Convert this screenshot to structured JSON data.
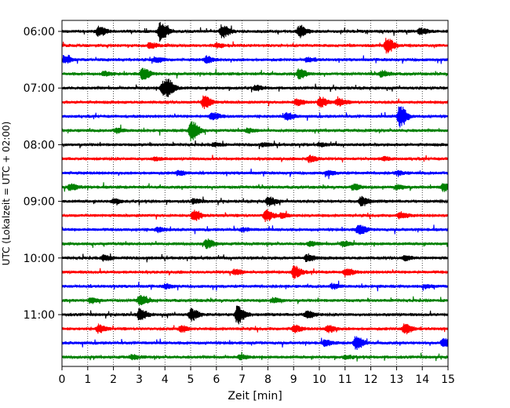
{
  "chart_data": {
    "type": "line",
    "title": "",
    "xlabel": "Zeit  [min]",
    "ylabel": "UTC (Lokalzeit = UTC + 02:00)",
    "xlim": [
      0,
      15
    ],
    "x_ticks": [
      "0",
      "1",
      "2",
      "3",
      "4",
      "5",
      "6",
      "7",
      "8",
      "9",
      "10",
      "11",
      "12",
      "13",
      "14",
      "15"
    ],
    "y_ticks": [
      "06:00",
      "07:00",
      "08:00",
      "09:00",
      "10:00",
      "11:00"
    ],
    "grid": "vertical dotted",
    "series_colors": [
      "#000000",
      "#ff0000",
      "#0000ff",
      "#008000"
    ],
    "trace_starts": [
      "06:00",
      "06:15",
      "06:30",
      "06:45",
      "07:00",
      "07:15",
      "07:30",
      "07:45",
      "08:00",
      "08:15",
      "08:30",
      "08:45",
      "09:00",
      "09:15",
      "09:30",
      "09:45",
      "10:00",
      "10:15",
      "10:30",
      "10:45",
      "11:00",
      "11:15",
      "11:30",
      "11:45"
    ],
    "events": [
      [
        [
          1.4,
          0.45
        ],
        [
          3.8,
          0.9
        ],
        [
          6.2,
          0.6
        ],
        [
          9.2,
          0.55
        ],
        [
          13.9,
          0.25
        ]
      ],
      [
        [
          3.4,
          0.25
        ],
        [
          12.6,
          0.7
        ],
        [
          6.0,
          0.2
        ]
      ],
      [
        [
          0.1,
          0.3
        ],
        [
          3.6,
          0.25
        ],
        [
          5.6,
          0.3
        ],
        [
          9.5,
          0.2
        ]
      ],
      [
        [
          3.1,
          0.55
        ],
        [
          9.2,
          0.45
        ],
        [
          12.4,
          0.25
        ],
        [
          1.6,
          0.2
        ]
      ],
      [
        [
          3.9,
          0.65
        ],
        [
          4.1,
          0.5
        ],
        [
          7.5,
          0.2
        ]
      ],
      [
        [
          5.5,
          0.6
        ],
        [
          10.0,
          0.45
        ],
        [
          10.7,
          0.35
        ],
        [
          9.1,
          0.3
        ]
      ],
      [
        [
          13.1,
          1.0
        ],
        [
          5.8,
          0.35
        ],
        [
          8.7,
          0.3
        ]
      ],
      [
        [
          5.0,
          0.95
        ],
        [
          2.1,
          0.2
        ],
        [
          7.2,
          0.2
        ]
      ],
      [
        [
          7.8,
          0.15
        ],
        [
          10.0,
          0.15
        ],
        [
          5.9,
          0.15
        ]
      ],
      [
        [
          9.6,
          0.3
        ],
        [
          3.6,
          0.15
        ],
        [
          12.5,
          0.15
        ]
      ],
      [
        [
          4.5,
          0.2
        ],
        [
          10.3,
          0.2
        ],
        [
          13.0,
          0.15
        ]
      ],
      [
        [
          0.3,
          0.3
        ],
        [
          14.8,
          0.35
        ],
        [
          11.3,
          0.25
        ],
        [
          13.0,
          0.2
        ]
      ],
      [
        [
          8.0,
          0.4
        ],
        [
          11.6,
          0.4
        ],
        [
          5.1,
          0.2
        ],
        [
          2.0,
          0.2
        ]
      ],
      [
        [
          5.1,
          0.5
        ],
        [
          7.9,
          0.55
        ],
        [
          13.1,
          0.3
        ],
        [
          8.5,
          0.2
        ]
      ],
      [
        [
          11.5,
          0.45
        ],
        [
          3.7,
          0.2
        ],
        [
          7.0,
          0.15
        ]
      ],
      [
        [
          5.6,
          0.4
        ],
        [
          10.9,
          0.25
        ],
        [
          9.6,
          0.2
        ]
      ],
      [
        [
          1.6,
          0.25
        ],
        [
          9.5,
          0.3
        ],
        [
          13.3,
          0.2
        ]
      ],
      [
        [
          9.0,
          0.55
        ],
        [
          11.0,
          0.35
        ],
        [
          6.7,
          0.25
        ]
      ],
      [
        [
          10.5,
          0.2
        ],
        [
          4.0,
          0.2
        ],
        [
          14.1,
          0.15
        ]
      ],
      [
        [
          3.0,
          0.45
        ],
        [
          1.1,
          0.25
        ],
        [
          8.2,
          0.2
        ]
      ],
      [
        [
          3.0,
          0.5
        ],
        [
          5.0,
          0.55
        ],
        [
          6.8,
          0.85
        ],
        [
          9.5,
          0.35
        ]
      ],
      [
        [
          1.4,
          0.35
        ],
        [
          4.6,
          0.3
        ],
        [
          9.0,
          0.3
        ],
        [
          10.3,
          0.35
        ],
        [
          13.3,
          0.5
        ]
      ],
      [
        [
          11.4,
          0.6
        ],
        [
          14.8,
          0.45
        ],
        [
          10.2,
          0.25
        ]
      ],
      [
        [
          2.7,
          0.2
        ],
        [
          6.9,
          0.2
        ],
        [
          11.0,
          0.15
        ]
      ]
    ]
  }
}
